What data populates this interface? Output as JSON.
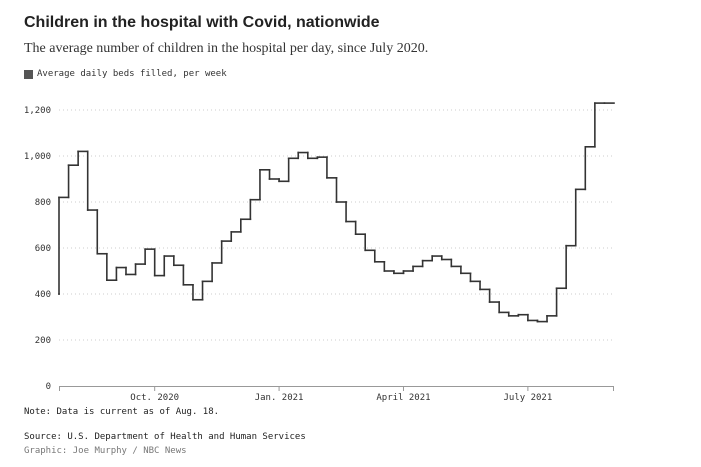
{
  "chart_data": {
    "type": "line",
    "title": "Children in the hospital with Covid, nationwide",
    "subtitle": "The average number of children in the hospital per day, since July 2020.",
    "legend": [
      "Average daily beds filled, per week"
    ],
    "line_style": "step",
    "xlabel": "",
    "ylabel": "",
    "ylim": [
      0,
      1200
    ],
    "yticks": [
      0,
      200,
      400,
      600,
      800,
      1000,
      1200
    ],
    "ytick_labels": [
      "0",
      "200",
      "400",
      "600",
      "800",
      "1,000",
      "1,200"
    ],
    "xtick_labels": [
      {
        "label": "Oct. 2020",
        "week": 10
      },
      {
        "label": "Jan. 2021",
        "week": 23
      },
      {
        "label": "April 2021",
        "week": 36
      },
      {
        "label": "July 2021",
        "week": 49
      }
    ],
    "grid": "horizontal-dotted",
    "series": [
      {
        "name": "Average daily beds filled, per week",
        "values": [
          400,
          820,
          960,
          1020,
          765,
          575,
          460,
          515,
          485,
          530,
          595,
          480,
          565,
          525,
          440,
          375,
          455,
          535,
          630,
          670,
          725,
          810,
          940,
          900,
          890,
          990,
          1015,
          990,
          995,
          905,
          800,
          715,
          660,
          590,
          540,
          500,
          490,
          500,
          520,
          545,
          565,
          550,
          520,
          490,
          455,
          420,
          365,
          320,
          305,
          310,
          285,
          280,
          305,
          425,
          610,
          855,
          1040,
          1230
        ]
      }
    ]
  },
  "note": "Note: Data is current as of Aug. 18.",
  "source": "Source: U.S. Department of Health and Human Services",
  "credit": "Graphic: Joe Murphy / NBC News",
  "colors": {
    "line": "#333333",
    "grid": "#cccccc",
    "axis": "#999999"
  }
}
